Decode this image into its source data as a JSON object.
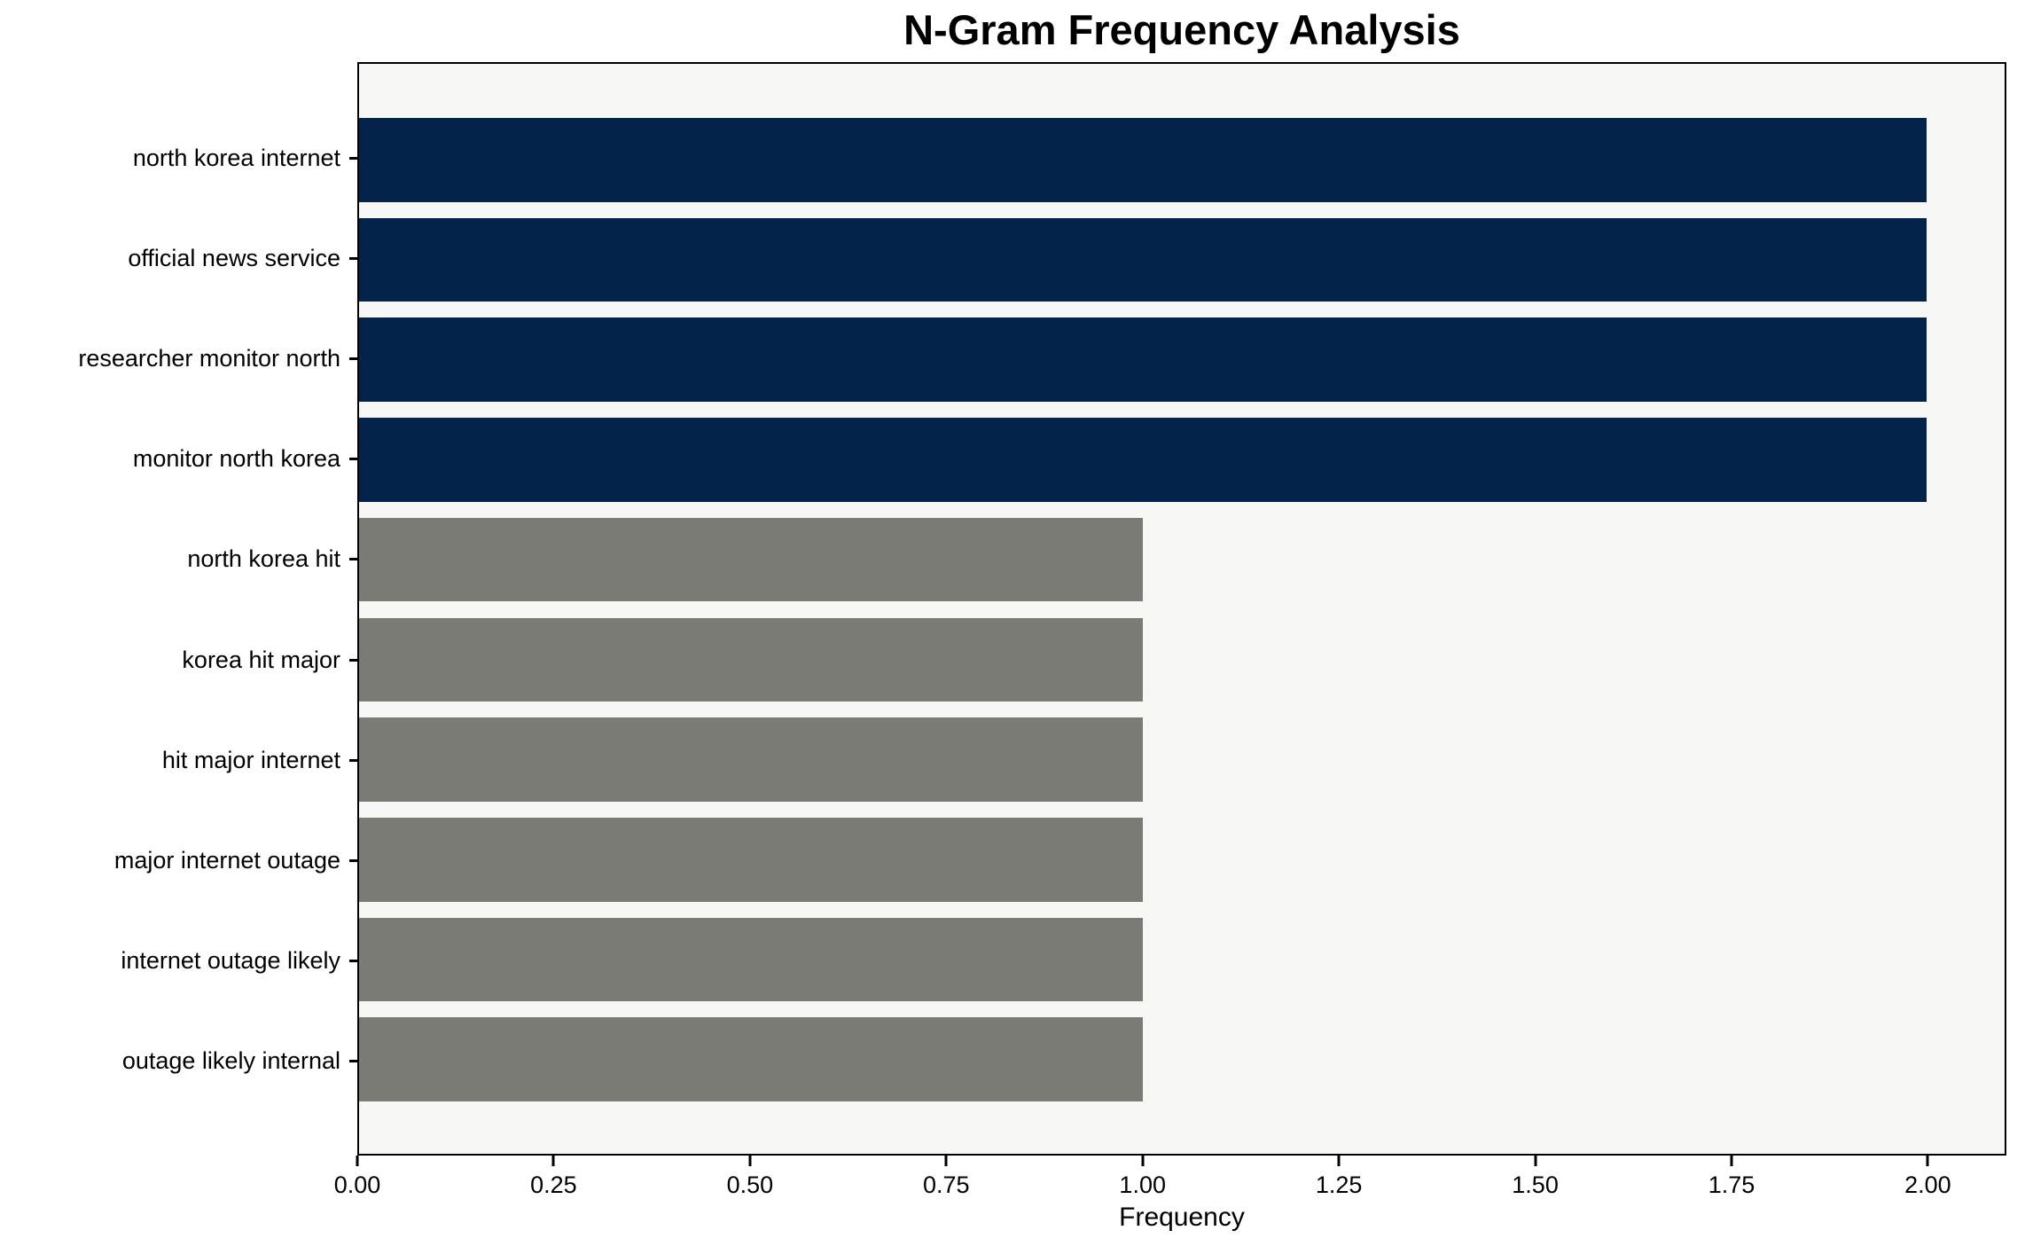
{
  "chart_data": {
    "type": "bar",
    "orientation": "horizontal",
    "title": "N-Gram Frequency Analysis",
    "xlabel": "Frequency",
    "ylabel": "",
    "categories": [
      "north korea internet",
      "official news service",
      "researcher monitor north",
      "monitor north korea",
      "north korea hit",
      "korea hit major",
      "hit major internet",
      "major internet outage",
      "internet outage likely",
      "outage likely internal"
    ],
    "values": [
      2,
      2,
      2,
      2,
      1,
      1,
      1,
      1,
      1,
      1
    ],
    "bar_colors": [
      "#03234b",
      "#03234b",
      "#03234b",
      "#03234b",
      "#7b7b76",
      "#7b7b76",
      "#7b7b76",
      "#7b7b76",
      "#7b7b76",
      "#7b7b76"
    ],
    "xlim": [
      0,
      2.1
    ],
    "xtick_values": [
      0.0,
      0.25,
      0.5,
      0.75,
      1.0,
      1.25,
      1.5,
      1.75,
      2.0
    ],
    "xtick_labels": [
      "0.00",
      "0.25",
      "0.50",
      "0.75",
      "1.00",
      "1.25",
      "1.50",
      "1.75",
      "2.00"
    ],
    "grid": false,
    "legend": null,
    "colors": {
      "bar_high": "#03234b",
      "bar_low": "#7b7b76",
      "plot_background": "#f7f7f6",
      "figure_background": "#ffffff",
      "spine": "#000000",
      "text": "#000000"
    }
  }
}
